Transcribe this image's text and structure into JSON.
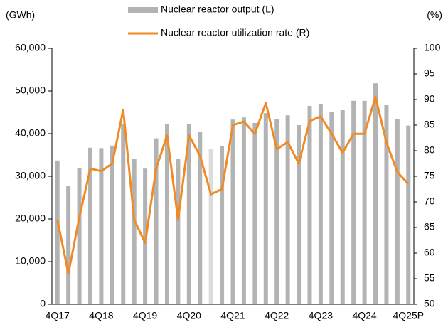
{
  "chart_data": {
    "type": "bar-line",
    "y_label": "(GWh)",
    "y2_label": "(%)",
    "categories": [
      "4Q17",
      null,
      null,
      null,
      "4Q18",
      null,
      null,
      null,
      "4Q19",
      null,
      null,
      null,
      "4Q20",
      null,
      null,
      null,
      "4Q21",
      null,
      null,
      null,
      "4Q22",
      null,
      null,
      null,
      "4Q23",
      null,
      null,
      null,
      "4Q24",
      null,
      null,
      null,
      "4Q25P"
    ],
    "series": [
      {
        "name": "Nuclear reactor output (L)",
        "type": "bar",
        "axis": "y",
        "color": "#b3b3b3",
        "colors": [
          "#b3b3b3",
          "#b3b3b3",
          "#b3b3b3",
          "#b3b3b3",
          "#b3b3b3",
          "#b3b3b3",
          "#b3b3b3",
          "#b3b3b3",
          "#b3b3b3",
          "#b3b3b3",
          "#b3b3b3",
          "#b3b3b3",
          "#b3b3b3",
          "#b3b3b3",
          "#dcdcdc",
          "#b3b3b3",
          "#b3b3b3",
          "#b3b3b3",
          "#b3b3b3",
          "#b3b3b3",
          "#b3b3b3",
          "#b3b3b3",
          "#b3b3b3",
          "#b3b3b3",
          "#b3b3b3",
          "#b3b3b3",
          "#b3b3b3",
          "#b3b3b3",
          "#b3b3b3",
          "#b3b3b3",
          "#b3b3b3",
          "#b3b3b3",
          "#b3b3b3"
        ],
        "values": [
          33700,
          27700,
          32000,
          36700,
          36600,
          37200,
          42300,
          34000,
          31800,
          38900,
          42300,
          34100,
          42300,
          40400,
          36500,
          37100,
          43300,
          43800,
          42500,
          44800,
          43500,
          44300,
          42000,
          46500,
          47000,
          45100,
          45500,
          47700,
          47700,
          51800,
          46700,
          43400,
          41900
        ]
      },
      {
        "name": "Nuclear reactor utilization rate (R)",
        "type": "line",
        "axis": "y2",
        "color": "#f08a24",
        "values": [
          66.5,
          56,
          67,
          76.5,
          76,
          77.5,
          88,
          66.5,
          62,
          76.5,
          83,
          66.5,
          83,
          79,
          71.5,
          72.5,
          85,
          85.7,
          83.3,
          89.3,
          80.3,
          81.7,
          77.5,
          85.8,
          86.7,
          83.3,
          79.6,
          83.3,
          83.3,
          90.5,
          81.6,
          75.8,
          73.5
        ]
      }
    ],
    "ylim": [
      0,
      60000
    ],
    "yticks": [
      0,
      {
        "value": 10000,
        "label": "10,000"
      },
      {
        "value": 20000,
        "label": "20,000"
      },
      {
        "value": 30000,
        "label": "30,000"
      },
      {
        "value": 40000,
        "label": "40,000"
      },
      {
        "value": 50000,
        "label": "50,000"
      },
      {
        "value": 60000,
        "label": "60,000"
      }
    ],
    "y2lim": [
      50,
      100
    ],
    "y2ticks": [
      50,
      55,
      60,
      65,
      70,
      75,
      80,
      85,
      90,
      95,
      100
    ]
  }
}
